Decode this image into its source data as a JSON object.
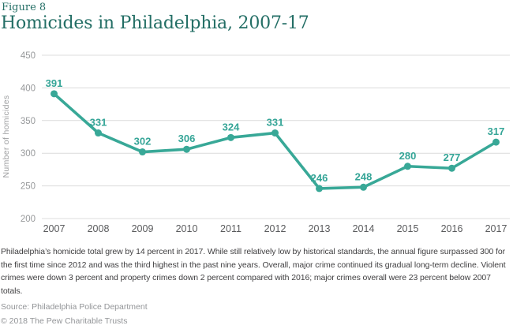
{
  "header": {
    "figure_label": "Figure 8",
    "title": "Homicides in Philadelphia, 2007-17"
  },
  "chart_data": {
    "type": "line",
    "title": "Homicides in Philadelphia, 2007-17",
    "x": [
      "2007",
      "2008",
      "2009",
      "2010",
      "2011",
      "2012",
      "2013",
      "2014",
      "2015",
      "2016",
      "2017"
    ],
    "series": [
      {
        "name": "Number of homicides",
        "values": [
          391,
          331,
          302,
          306,
          324,
          331,
          246,
          248,
          280,
          277,
          317
        ]
      }
    ],
    "xlabel": "",
    "ylabel": "Number of homicides",
    "ylim": [
      200,
      450
    ],
    "ytick_step": 50,
    "grid": true,
    "legend_position": "none",
    "data_labels_shown": true,
    "colors": {
      "line": "#38A897",
      "point": "#38A897",
      "data_label": "#35A597",
      "gridline": "#DCDCDC",
      "y_tick_label": "#97999B",
      "x_tick_label": "#5A5B5D",
      "axis_title": "#9E9FA1"
    }
  },
  "caption": {
    "text": "Philadelphia’s homicide total grew by 14 percent in 2017. While still relatively low by historical standards, the annual figure surpassed 300 for the first time since 2012 and was the third highest in the past nine years. Overall, major crime continued its gradual long-term decline. Violent crimes were down 3 percent and property crimes down 2 percent compared with 2016; major crimes overall were 23 percent below 2007 totals."
  },
  "footer": {
    "source": "Source: Philadelphia Police Department",
    "copyright": "© 2018 The Pew Charitable Trusts"
  }
}
